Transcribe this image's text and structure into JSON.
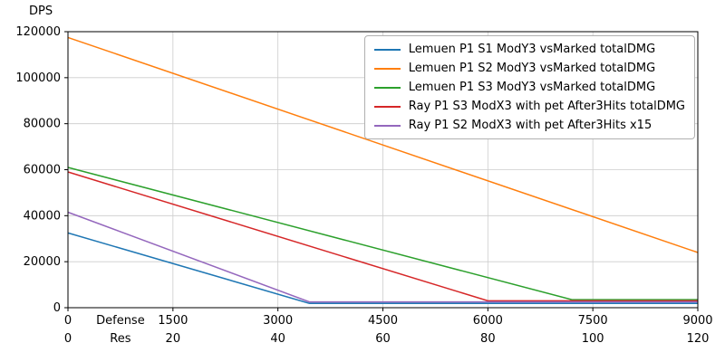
{
  "chart_data": {
    "type": "line",
    "title": "",
    "ylabel": "DPS",
    "xlim": [
      0,
      9000
    ],
    "ylim": [
      0,
      120000
    ],
    "yticks": [
      0,
      20000,
      40000,
      60000,
      80000,
      100000,
      120000
    ],
    "x_axis_rows": [
      {
        "label": "Defense",
        "ticks": [
          0,
          1500,
          3000,
          4500,
          6000,
          7500,
          9000
        ]
      },
      {
        "label": "Res",
        "ticks": [
          0,
          20,
          40,
          60,
          80,
          100,
          120
        ]
      }
    ],
    "grid": true,
    "legend_position": "upper right",
    "series": [
      {
        "name": "Lemuen P1 S1 ModY3 vsMarked totalDMG",
        "color": "#1f77b4",
        "points": [
          [
            0,
            32500
          ],
          [
            3450,
            1900
          ],
          [
            9000,
            1900
          ]
        ]
      },
      {
        "name": "Lemuen P1 S2 ModY3 vsMarked totalDMG",
        "color": "#ff7f0e",
        "points": [
          [
            0,
            117500
          ],
          [
            9000,
            24000
          ]
        ]
      },
      {
        "name": "Lemuen P1 S3 ModY3 vsMarked totalDMG",
        "color": "#2ca02c",
        "points": [
          [
            0,
            61000
          ],
          [
            7200,
            3500
          ],
          [
            9000,
            3500
          ]
        ]
      },
      {
        "name": "Ray P1 S3 ModX3 with pet After3Hits totalDMG",
        "color": "#d62728",
        "points": [
          [
            0,
            59000
          ],
          [
            6000,
            3000
          ],
          [
            9000,
            3000
          ]
        ]
      },
      {
        "name": "Ray P1 S2 ModX3 with pet After3Hits x15",
        "color": "#9467bd",
        "points": [
          [
            0,
            41500
          ],
          [
            3450,
            2500
          ],
          [
            9000,
            2500
          ]
        ]
      }
    ]
  }
}
